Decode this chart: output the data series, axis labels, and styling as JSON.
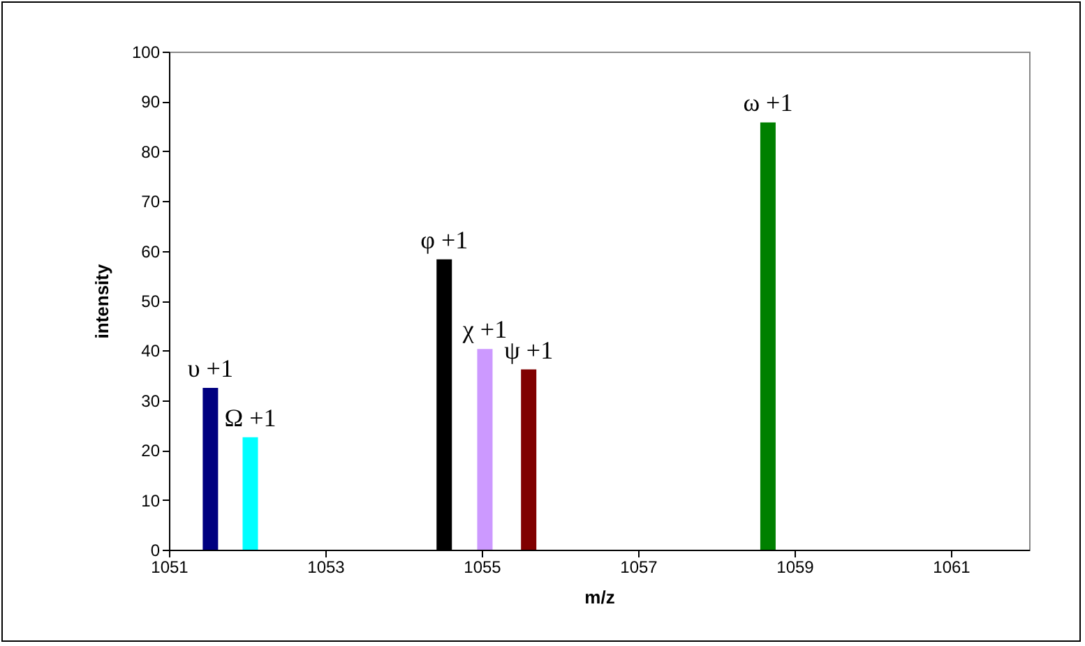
{
  "chart_data": {
    "type": "bar",
    "xlabel": "m/z",
    "ylabel": "intensity",
    "xlim": [
      1051,
      1062
    ],
    "xticks": [
      1051,
      1053,
      1055,
      1057,
      1059,
      1061
    ],
    "ylim": [
      0,
      100
    ],
    "yticks": [
      0,
      10,
      20,
      30,
      40,
      50,
      60,
      70,
      80,
      90,
      100
    ],
    "grid": false,
    "legend": false,
    "series": [
      {
        "name": "υ +1",
        "color": "#000080",
        "x": [
          1051.53
        ],
        "values": [
          32.5
        ]
      },
      {
        "name": "Ω +1",
        "color": "#00ffff",
        "x": [
          1052.04
        ],
        "values": [
          22.6
        ]
      },
      {
        "name": "φ +1",
        "color": "#000000",
        "x": [
          1054.52
        ],
        "values": [
          58.3
        ]
      },
      {
        "name": "χ +1",
        "color": "#cc99ff",
        "x": [
          1055.04
        ],
        "values": [
          40.3
        ]
      },
      {
        "name": "ψ +1",
        "color": "#800000",
        "x": [
          1055.6
        ],
        "values": [
          36.2
        ]
      },
      {
        "name": "ω +1",
        "color": "#008000",
        "x": [
          1058.66
        ],
        "values": [
          85.8
        ]
      }
    ]
  }
}
